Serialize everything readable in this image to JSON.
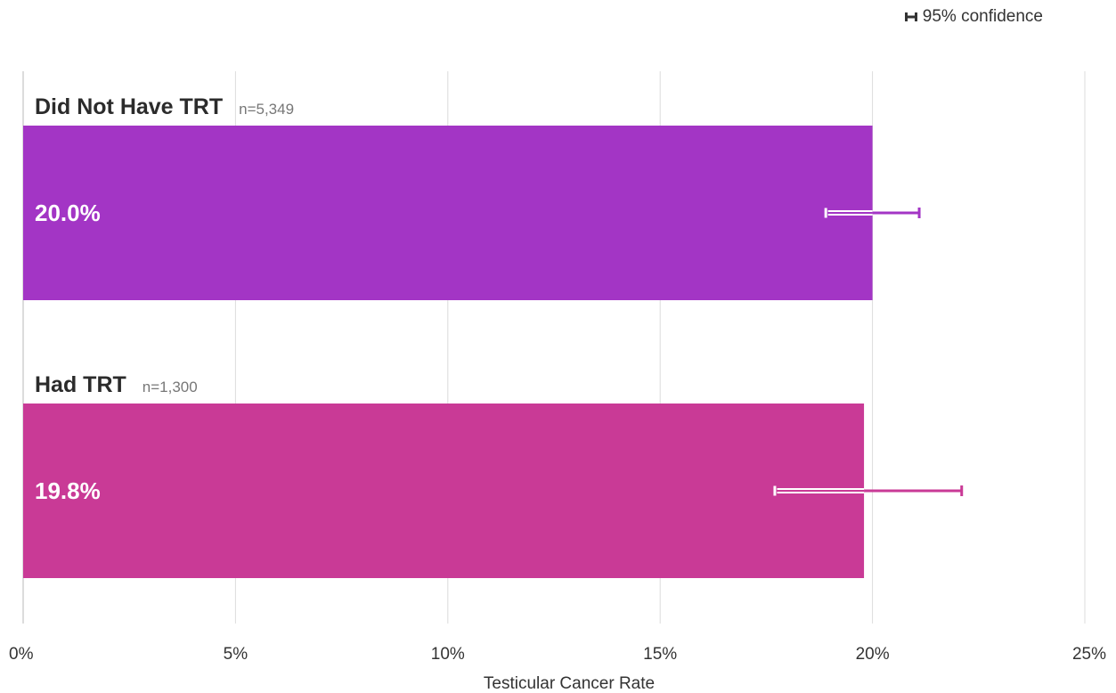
{
  "chart_data": {
    "type": "bar",
    "orientation": "horizontal",
    "categories": [
      "Did Not Have TRT",
      "Had TRT"
    ],
    "sample_sizes": [
      "n=5,349",
      "n=1,300"
    ],
    "values": [
      20.0,
      19.8
    ],
    "value_labels": [
      "20.0%",
      "19.8%"
    ],
    "ci_low": [
      18.9,
      17.7
    ],
    "ci_high": [
      21.1,
      22.1
    ],
    "bar_colors": [
      "#a335c5",
      "#c93a96"
    ],
    "xlabel": "Testicular Cancer Rate",
    "xlim": [
      0,
      25
    ],
    "x_ticks": [
      0,
      5,
      10,
      15,
      20,
      25
    ],
    "x_tick_labels": [
      "0%",
      "5%",
      "10%",
      "15%",
      "20%",
      "25%"
    ],
    "grid": true,
    "legend": {
      "label": "95% confidence",
      "placement": "top-right"
    }
  }
}
